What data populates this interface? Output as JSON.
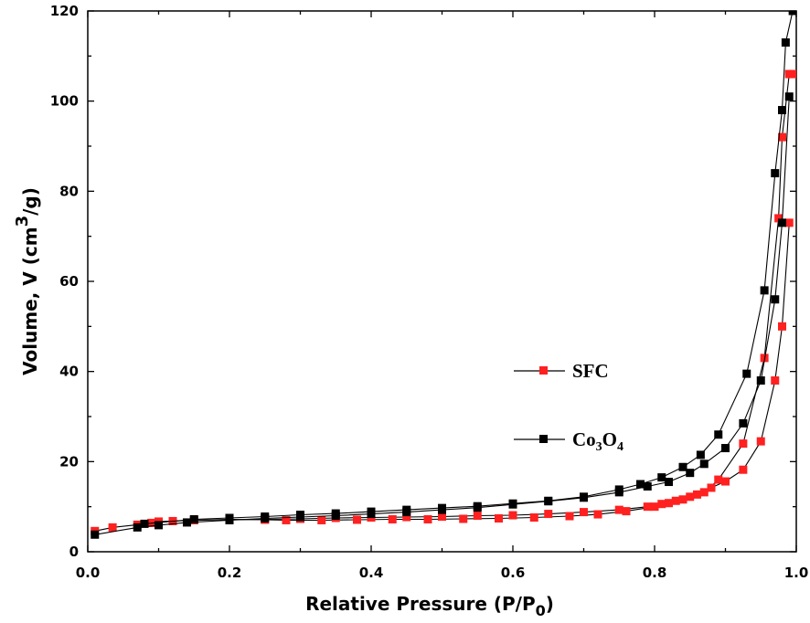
{
  "chart_data": {
    "type": "line",
    "xlabel": {
      "main": "Relative Pressure (P/P",
      "sub": "0",
      "end": ")"
    },
    "ylabel": {
      "main": "Volume, V (cm",
      "sup": "3",
      "end": "/g)"
    },
    "xlim": [
      0,
      1.0
    ],
    "ylim": [
      0,
      120
    ],
    "xticks": [
      "0.0",
      "0.2",
      "0.4",
      "0.6",
      "0.8",
      "1.0"
    ],
    "yticks": [
      "0",
      "20",
      "40",
      "60",
      "80",
      "100",
      "120"
    ],
    "legend_position": "center-right",
    "series": [
      {
        "name": "SFC",
        "name_parts": {
          "main": "SFC"
        },
        "color": "#ff2020",
        "marker": "square",
        "adsorption": {
          "x": [
            0.01,
            0.035,
            0.07,
            0.09,
            0.12,
            0.15,
            0.2,
            0.25,
            0.28,
            0.33,
            0.38,
            0.43,
            0.48,
            0.53,
            0.58,
            0.63,
            0.68,
            0.72,
            0.76,
            0.8,
            0.82,
            0.84,
            0.86,
            0.88,
            0.9,
            0.925,
            0.95,
            0.97,
            0.98,
            0.99
          ],
          "y": [
            4.6,
            5.4,
            6.0,
            6.4,
            6.8,
            7.0,
            7.2,
            7.1,
            7.0,
            7.0,
            7.1,
            7.2,
            7.2,
            7.3,
            7.4,
            7.6,
            7.9,
            8.3,
            9.0,
            10.0,
            10.8,
            11.6,
            12.7,
            14.2,
            15.6,
            18.2,
            24.5,
            38.0,
            50.0,
            73.0
          ]
        },
        "desorption": {
          "x": [
            0.995,
            0.99,
            0.98,
            0.975,
            0.955,
            0.925,
            0.89,
            0.87,
            0.85,
            0.83,
            0.81,
            0.79,
            0.75,
            0.7,
            0.65,
            0.6,
            0.55,
            0.5,
            0.45,
            0.4,
            0.35,
            0.3,
            0.25,
            0.2,
            0.15,
            0.1
          ],
          "y": [
            106.0,
            106.0,
            92.0,
            74.0,
            43.0,
            24.0,
            16.0,
            13.2,
            12.2,
            11.3,
            10.6,
            10.0,
            9.3,
            8.8,
            8.4,
            8.1,
            8.0,
            7.8,
            7.7,
            7.6,
            7.5,
            7.3,
            7.2,
            7.1,
            7.0,
            6.7
          ]
        }
      },
      {
        "name": "Co3O4",
        "name_parts": {
          "main": "Co",
          "sub1": "3",
          "mid": "O",
          "sub2": "4"
        },
        "color": "#000000",
        "marker": "square",
        "adsorption": {
          "x": [
            0.01,
            0.07,
            0.1,
            0.14,
            0.2,
            0.25,
            0.3,
            0.35,
            0.4,
            0.45,
            0.5,
            0.55,
            0.6,
            0.65,
            0.7,
            0.75,
            0.79,
            0.82,
            0.85,
            0.87,
            0.9,
            0.925,
            0.95,
            0.97,
            0.98,
            0.99
          ],
          "y": [
            3.8,
            5.4,
            5.9,
            6.5,
            7.0,
            7.4,
            7.7,
            8.0,
            8.4,
            8.8,
            9.3,
            9.8,
            10.5,
            11.2,
            12.0,
            13.2,
            14.5,
            15.5,
            17.5,
            19.5,
            23.0,
            28.5,
            38.0,
            56.0,
            73.0,
            101.0
          ]
        },
        "desorption": {
          "x": [
            0.995,
            0.985,
            0.98,
            0.97,
            0.955,
            0.93,
            0.89,
            0.865,
            0.84,
            0.81,
            0.78,
            0.75,
            0.7,
            0.65,
            0.6,
            0.55,
            0.5,
            0.45,
            0.4,
            0.35,
            0.3,
            0.25,
            0.2,
            0.15,
            0.08
          ],
          "y": [
            120.0,
            113.0,
            98.0,
            84.0,
            58.0,
            39.5,
            26.0,
            21.5,
            18.8,
            16.5,
            15.0,
            13.8,
            12.2,
            11.3,
            10.7,
            10.1,
            9.7,
            9.3,
            8.9,
            8.5,
            8.2,
            7.8,
            7.5,
            7.2,
            6.2
          ]
        }
      }
    ]
  }
}
